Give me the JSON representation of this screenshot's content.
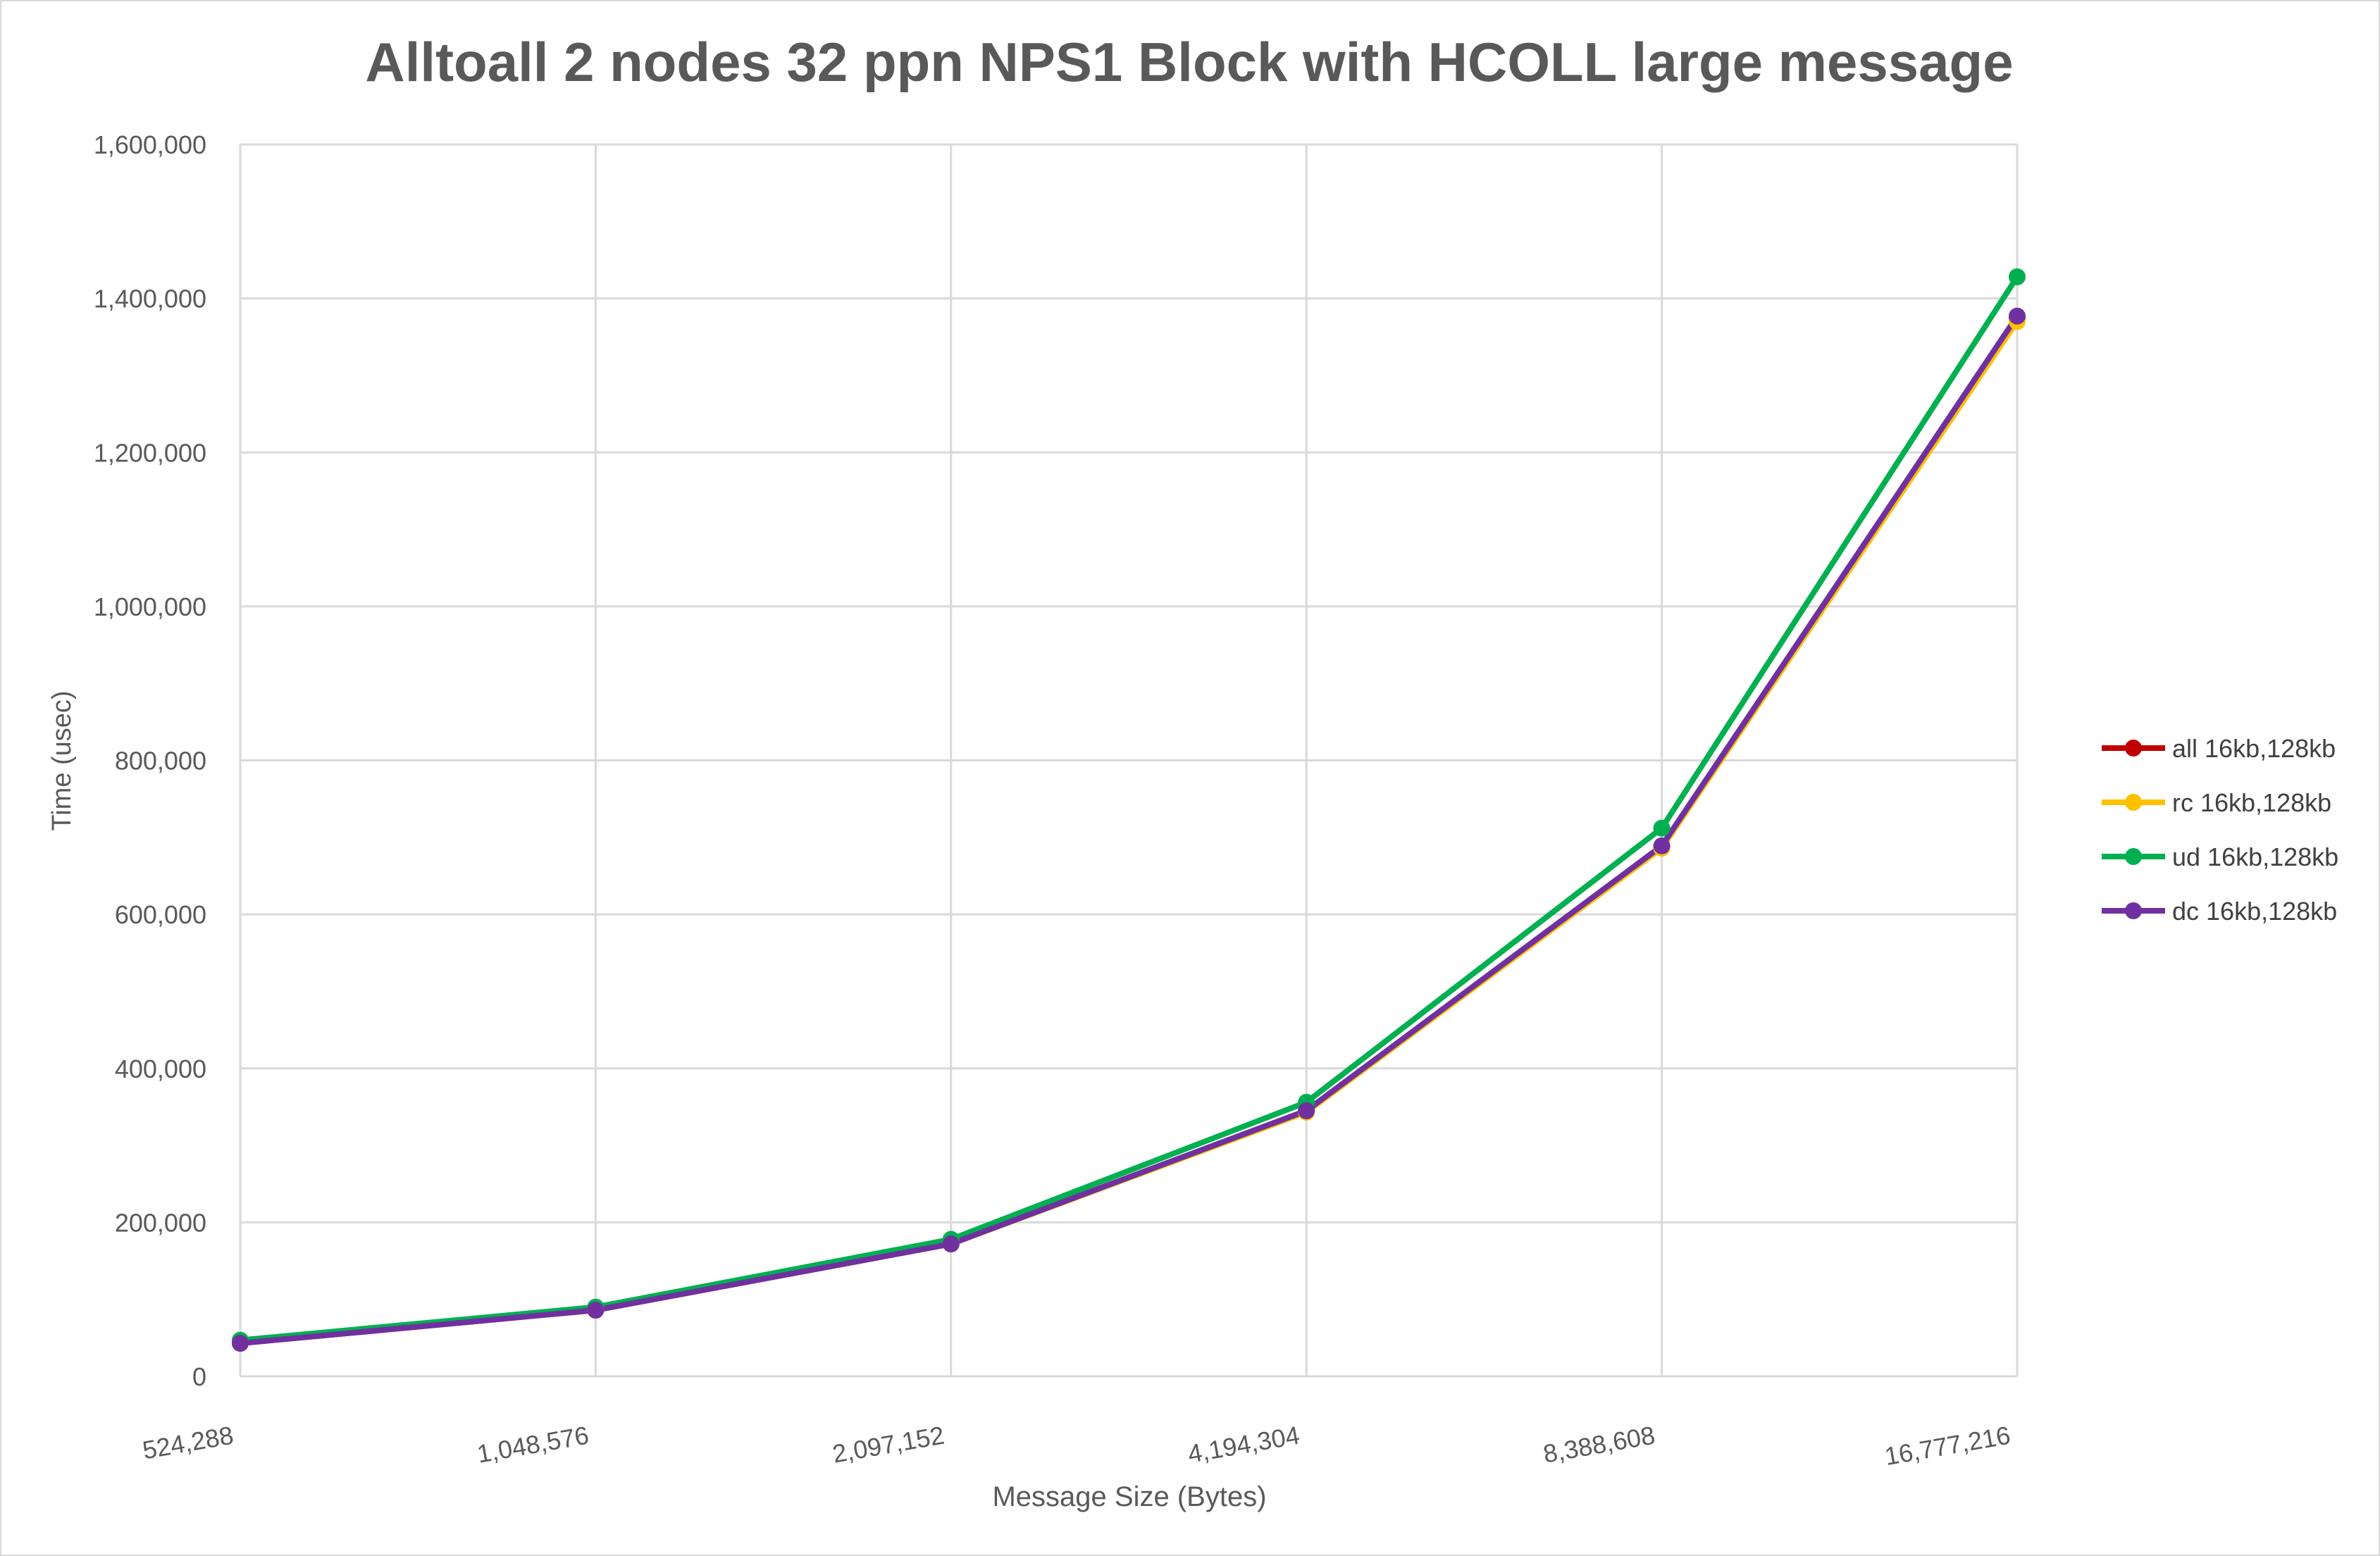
{
  "chart_data": {
    "type": "line",
    "title": "Alltoall 2 nodes 32 ppn NPS1 Block with HCOLL large message",
    "xlabel": "Message Size (Bytes)",
    "ylabel": "Time (usec)",
    "categories": [
      "524,288",
      "1,048,576",
      "2,097,152",
      "4,194,304",
      "8,388,608",
      "16,777,216"
    ],
    "y_ticks": [
      "0",
      "200,000",
      "400,000",
      "600,000",
      "800,000",
      "1,000,000",
      "1,200,000",
      "1,400,000",
      "1,600,000"
    ],
    "ylim": [
      0,
      1600000
    ],
    "grid": true,
    "legend_position": "right",
    "series": [
      {
        "name": "all 16kb,128kb",
        "color": "#c00000",
        "values": [
          43000,
          86000,
          172000,
          345000,
          688000,
          1375000
        ]
      },
      {
        "name": "rc 16kb,128kb",
        "color": "#ffc000",
        "values": [
          43000,
          86000,
          172000,
          343000,
          686000,
          1370000
        ]
      },
      {
        "name": "ud 16kb,128kb",
        "color": "#00b050",
        "values": [
          47000,
          90000,
          178000,
          356000,
          712000,
          1428000
        ]
      },
      {
        "name": "dc 16kb,128kb",
        "color": "#7030a0",
        "values": [
          43000,
          86000,
          172000,
          345000,
          689000,
          1377000
        ]
      }
    ]
  }
}
